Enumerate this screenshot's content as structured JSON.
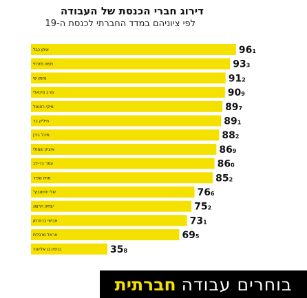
{
  "header": {
    "title": "דירוג חברי הכנסת של העבודה",
    "subtitle": "לפי ציוניהם במדד החברתי לכנסת ה-19"
  },
  "footer": {
    "slogan_regular": "בוחרים עבודה",
    "slogan_bold": "חברתית"
  },
  "colors": {
    "bar": "#f4e100",
    "text": "#111111",
    "banner_bg": "#000000",
    "banner_accent": "#f4e100"
  },
  "chart_data": {
    "type": "bar",
    "orientation": "horizontal",
    "title": "דירוג חברי הכנסת של העבודה",
    "subtitle": "לפי ציוניהם במדד החברתי לכנסת ה-19",
    "categories": [
      "איתן כבל",
      "משה מזרחי",
      "נחמן שי",
      "מרב מיכאלי",
      "מיקי רוזנטל",
      "חיליק בר",
      "מיכל בירן",
      "איציק שמולי",
      "עמר בר-לב",
      "סתיו שפיר",
      "שלי יחימוביץ'",
      "יצחק הרצוג",
      "אבישי ברוורמן",
      "אראל מרגלית",
      "בנימין בן אליעזר"
    ],
    "values": [
      96.1,
      93.3,
      91.2,
      90.9,
      89.7,
      89.1,
      88.2,
      86.9,
      86.0,
      85.2,
      76.6,
      75.2,
      73.1,
      69.5,
      35.8
    ],
    "value_labels": [
      {
        "int": "96",
        "dec": "1"
      },
      {
        "int": "93",
        "dec": "3"
      },
      {
        "int": "91",
        "dec": "2"
      },
      {
        "int": "90",
        "dec": "9"
      },
      {
        "int": "89",
        "dec": "7"
      },
      {
        "int": "89",
        "dec": "1"
      },
      {
        "int": "88",
        "dec": "2"
      },
      {
        "int": "86",
        "dec": "9"
      },
      {
        "int": "86",
        "dec": "0"
      },
      {
        "int": "85",
        "dec": "2"
      },
      {
        "int": "76",
        "dec": "6"
      },
      {
        "int": "75",
        "dec": "2"
      },
      {
        "int": "73",
        "dec": "1"
      },
      {
        "int": "69",
        "dec": "5"
      },
      {
        "int": "35",
        "dec": "8"
      }
    ],
    "xlim": [
      0,
      100
    ],
    "grid": false,
    "legend": "none"
  }
}
